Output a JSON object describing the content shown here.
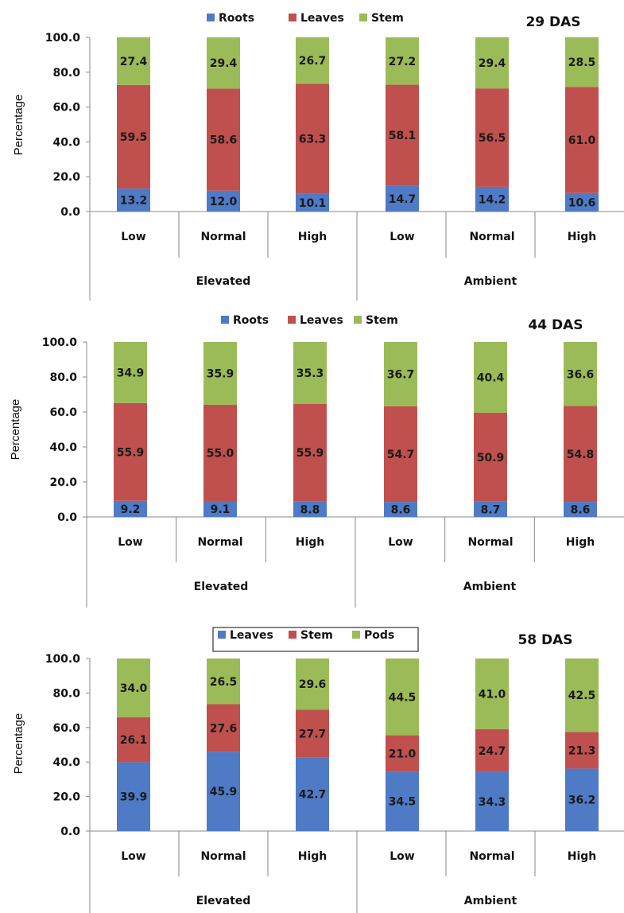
{
  "colors": {
    "blue": "#4f7ac6",
    "red": "#c0504d",
    "green": "#9bbb59",
    "axis": "#888888",
    "text": "#111111"
  },
  "chart_data": [
    {
      "type": "bar",
      "stacked": true,
      "title": "29 DAS",
      "ylabel": "Percentage",
      "ylim": [
        0,
        100
      ],
      "yticks": [
        "0.0",
        "20.0",
        "40.0",
        "60.0",
        "80.0",
        "100.0"
      ],
      "categories": [
        "Low",
        "Normal",
        "High",
        "Low",
        "Normal",
        "High"
      ],
      "groups": [
        "Elevated",
        "Ambient"
      ],
      "legend_position": "top-center",
      "series": [
        {
          "name": "Roots",
          "color": "blue",
          "values": [
            13.2,
            12.0,
            10.1,
            14.7,
            14.2,
            10.6
          ],
          "labels": [
            "13.2",
            "12.0",
            "10.1",
            "14.7",
            "14.2",
            "10.6"
          ]
        },
        {
          "name": "Leaves",
          "color": "red",
          "values": [
            59.5,
            58.6,
            63.3,
            58.1,
            56.5,
            61.0
          ],
          "labels": [
            "59.5",
            "58.6",
            "63.3",
            "58.1",
            "56.5",
            "61.0"
          ]
        },
        {
          "name": "Stem",
          "color": "green",
          "values": [
            27.4,
            29.4,
            26.7,
            27.2,
            29.4,
            28.5
          ],
          "labels": [
            "27.4",
            "29.4",
            "26.7",
            "27.2",
            "29.4",
            "28.5"
          ]
        }
      ]
    },
    {
      "type": "bar",
      "stacked": true,
      "title": "44 DAS",
      "ylabel": "Percentage",
      "ylim": [
        0,
        100
      ],
      "yticks": [
        "0.0",
        "20.0",
        "40.0",
        "60.0",
        "80.0",
        "100.0"
      ],
      "categories": [
        "Low",
        "Normal",
        "High",
        "Low",
        "Normal",
        "High"
      ],
      "groups": [
        "Elevated",
        "Ambient"
      ],
      "legend_position": "top-center",
      "series": [
        {
          "name": "Roots",
          "color": "blue",
          "values": [
            9.2,
            9.1,
            8.8,
            8.6,
            8.7,
            8.6
          ],
          "labels": [
            "9.2",
            "9.1",
            "8.8",
            "8.6",
            "8.7",
            "8.6"
          ]
        },
        {
          "name": "Leaves",
          "color": "red",
          "values": [
            55.9,
            55.0,
            55.9,
            54.7,
            50.9,
            54.8
          ],
          "labels": [
            "55.9",
            "55.0",
            "55.9",
            "54.7",
            "50.9",
            "54.8"
          ]
        },
        {
          "name": "Stem",
          "color": "green",
          "values": [
            34.9,
            35.9,
            35.3,
            36.7,
            40.4,
            36.6
          ],
          "labels": [
            "34.9",
            "35.9",
            "35.3",
            "36.7",
            "40.4",
            "36.6"
          ]
        }
      ]
    },
    {
      "type": "bar",
      "stacked": true,
      "title": "58 DAS",
      "ylabel": "Percentage",
      "ylim": [
        0,
        100
      ],
      "yticks": [
        "0.0",
        "20.0",
        "40.0",
        "60.0",
        "80.0",
        "100.0"
      ],
      "categories": [
        "Low",
        "Normal",
        "High",
        "Low",
        "Normal",
        "High"
      ],
      "groups": [
        "Elevated",
        "Ambient"
      ],
      "legend_position": "top-center",
      "legend_boxed": true,
      "series": [
        {
          "name": "Leaves",
          "color": "blue",
          "values": [
            39.9,
            45.9,
            42.7,
            34.5,
            34.3,
            36.2
          ],
          "labels": [
            "39.9",
            "45.9",
            "42.7",
            "34.5",
            "34.3",
            "36.2"
          ]
        },
        {
          "name": "Stem",
          "color": "red",
          "values": [
            26.1,
            27.6,
            27.7,
            21.0,
            24.7,
            21.3
          ],
          "labels": [
            "26.1",
            "27.6",
            "27.7",
            "21.0",
            "24.7",
            "21.3"
          ]
        },
        {
          "name": "Pods",
          "color": "green",
          "values": [
            34.0,
            26.5,
            29.6,
            44.5,
            41.0,
            42.5
          ],
          "labels": [
            "34.0",
            "26.5",
            "29.6",
            "44.5",
            "41.0",
            "42.5"
          ]
        }
      ]
    }
  ]
}
